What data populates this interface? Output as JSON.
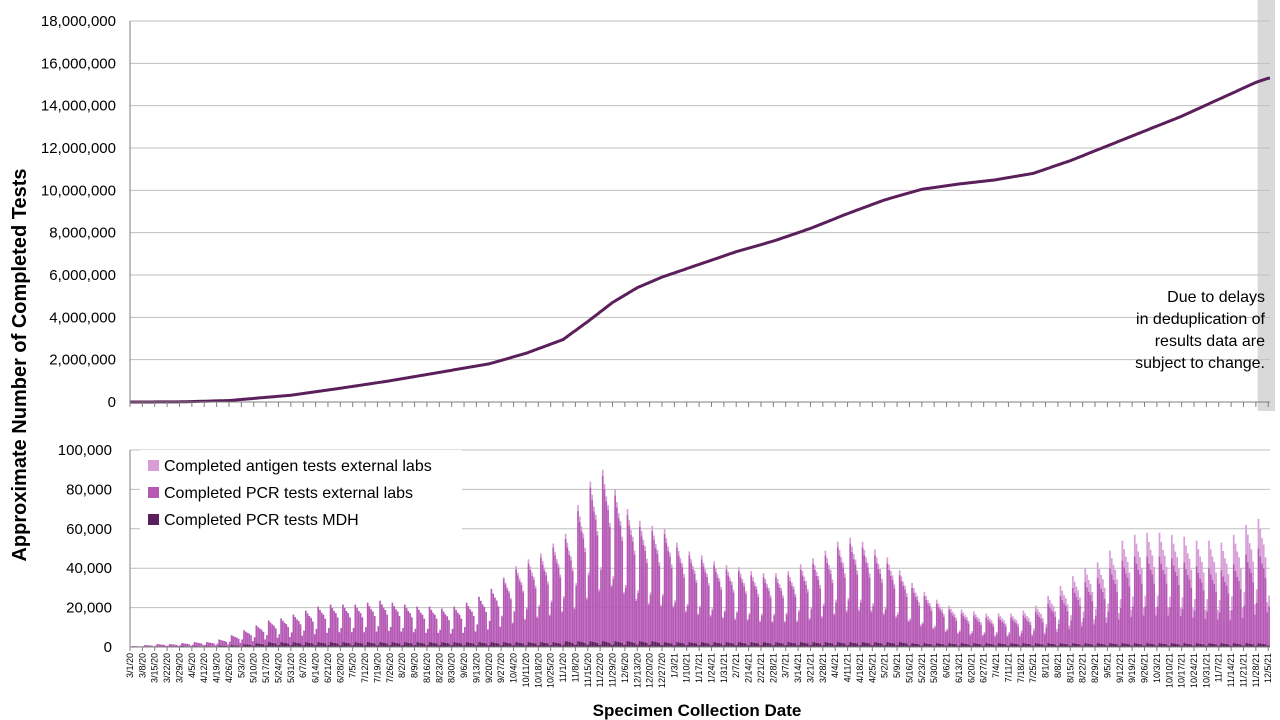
{
  "chart_data": [
    {
      "type": "line",
      "title": "",
      "ylabel": "Approximate Number of Completed Tests",
      "xlabel": "Specimen Collection Date",
      "ylim": [
        0,
        18000000
      ],
      "yticks": [
        "0",
        "2,000,000",
        "4,000,000",
        "6,000,000",
        "8,000,000",
        "10,000,000",
        "12,000,000",
        "14,000,000",
        "16,000,000",
        "18,000,000"
      ],
      "grid": true,
      "shaded_recent_period": true,
      "note": [
        "Due to delays",
        "in deduplication of",
        "results data are",
        "subject to change."
      ],
      "line_color": "#5b1f5b",
      "x": [
        "2020-03-01",
        "2020-03-29",
        "2020-04-26",
        "2020-05-31",
        "2020-06-28",
        "2020-07-26",
        "2020-08-23",
        "2020-09-20",
        "2020-10-11",
        "2020-11-01",
        "2020-11-15",
        "2020-11-29",
        "2020-12-13",
        "2020-12-27",
        "2021-01-17",
        "2021-02-07",
        "2021-02-28",
        "2021-03-21",
        "2021-04-11",
        "2021-05-02",
        "2021-05-23",
        "2021-06-13",
        "2021-07-04",
        "2021-07-25",
        "2021-08-15",
        "2021-09-05",
        "2021-09-26",
        "2021-10-17",
        "2021-11-07",
        "2021-11-28",
        "2021-12-05"
      ],
      "values": [
        0,
        5000,
        70000,
        320000,
        650000,
        1000000,
        1400000,
        1800000,
        2300000,
        2950000,
        3800000,
        4700000,
        5400000,
        5900000,
        6500000,
        7100000,
        7600000,
        8200000,
        8900000,
        9550000,
        10050000,
        10300000,
        10500000,
        10800000,
        11400000,
        12100000,
        12800000,
        13500000,
        14300000,
        15100000,
        15300000
      ]
    },
    {
      "type": "bar",
      "stacked": true,
      "ylim": [
        0,
        100000
      ],
      "yticks": [
        "0",
        "20,000",
        "40,000",
        "60,000",
        "80,000",
        "100,000"
      ],
      "grid": true,
      "legend_position": "top-left",
      "series": [
        {
          "name": "Completed antigen tests external labs",
          "color": "#d79ed7"
        },
        {
          "name": "Completed PCR tests external labs",
          "color": "#b559b5"
        },
        {
          "name": "Completed PCR tests MDH",
          "color": "#5b1f5b"
        }
      ],
      "weekly_peaks": {
        "weeks": [
          "3/1/20",
          "3/8/20",
          "3/15/20",
          "3/22/20",
          "3/29/20",
          "4/5/20",
          "4/12/20",
          "4/19/20",
          "4/26/20",
          "5/3/20",
          "5/10/20",
          "5/17/20",
          "5/24/20",
          "5/31/20",
          "6/7/20",
          "6/14/20",
          "6/21/20",
          "6/28/20",
          "7/5/20",
          "7/12/20",
          "7/19/20",
          "7/26/20",
          "8/2/20",
          "8/9/20",
          "8/16/20",
          "8/23/20",
          "8/30/20",
          "9/6/20",
          "9/13/20",
          "9/20/20",
          "9/27/20",
          "10/4/20",
          "10/11/20",
          "10/18/20",
          "10/25/20",
          "11/1/20",
          "11/8/20",
          "11/15/20",
          "11/22/20",
          "11/29/20",
          "12/6/20",
          "12/13/20",
          "12/20/20",
          "12/27/20",
          "1/3/21",
          "1/10/21",
          "1/17/21",
          "1/24/21",
          "1/31/21",
          "2/7/21",
          "2/14/21",
          "2/21/21",
          "2/28/21",
          "3/7/21",
          "3/14/21",
          "3/21/21",
          "3/28/21",
          "4/4/21",
          "4/11/21",
          "4/18/21",
          "4/25/21",
          "5/2/21",
          "5/9/21",
          "5/16/21",
          "5/23/21",
          "5/30/21",
          "6/6/21",
          "6/13/21",
          "6/20/21",
          "6/27/21",
          "7/4/21",
          "7/11/21",
          "7/18/21",
          "7/25/21",
          "8/1/21",
          "8/8/21",
          "8/15/21",
          "8/22/21",
          "8/29/21",
          "9/5/21",
          "9/12/21",
          "9/19/21",
          "9/26/21",
          "10/3/21",
          "10/10/21",
          "10/17/21",
          "10/24/21",
          "10/31/21",
          "11/7/21",
          "11/14/21",
          "11/21/21",
          "11/28/21",
          "12/5/21"
        ],
        "antigen": [
          0,
          0,
          0,
          0,
          0,
          0,
          0,
          0,
          0,
          0,
          0,
          0,
          0,
          0,
          0,
          0,
          0,
          0,
          0,
          0,
          0,
          0,
          0,
          0,
          0,
          0,
          0,
          0,
          0,
          0,
          1000,
          1500,
          2000,
          2000,
          2000,
          2500,
          3000,
          3000,
          3000,
          3000,
          3000,
          3000,
          2500,
          2500,
          2500,
          2000,
          2000,
          2000,
          2000,
          2000,
          2000,
          2000,
          2000,
          2000,
          2500,
          2500,
          2500,
          3000,
          3000,
          3000,
          3000,
          3000,
          2500,
          2500,
          2000,
          2000,
          2000,
          2000,
          2000,
          2000,
          2000,
          2000,
          2500,
          3000,
          4000,
          5000,
          6000,
          7000,
          8000,
          9000,
          10000,
          11000,
          12000,
          12000,
          12000,
          13000,
          13000,
          14000,
          14000,
          15000,
          15000,
          15000,
          12000
        ],
        "pcr_external": [
          500,
          1000,
          1500,
          1500,
          1500,
          2000,
          2000,
          3000,
          5000,
          7000,
          9000,
          11000,
          12000,
          14000,
          16000,
          18000,
          19000,
          19000,
          19000,
          20000,
          21000,
          20000,
          19000,
          18000,
          18000,
          17000,
          18000,
          20000,
          23000,
          27000,
          32000,
          37000,
          40000,
          43000,
          48000,
          52000,
          66000,
          78000,
          84000,
          74000,
          64000,
          58000,
          56000,
          55000,
          48000,
          44000,
          42000,
          39000,
          37000,
          36000,
          34000,
          33000,
          33000,
          34000,
          37000,
          40000,
          44000,
          48000,
          50000,
          48000,
          44000,
          40000,
          34000,
          28000,
          24000,
          20000,
          17000,
          15000,
          14000,
          13000,
          13000,
          13000,
          14000,
          16000,
          20000,
          24000,
          28000,
          31000,
          33000,
          38000,
          42000,
          44000,
          44000,
          44000,
          43000,
          41000,
          39000,
          38000,
          37000,
          40000,
          45000,
          48000,
          44000
        ],
        "pcr_mdh": [
          0,
          0,
          0,
          0,
          500,
          500,
          500,
          800,
          1000,
          1500,
          2000,
          2500,
          2500,
          2500,
          2500,
          2500,
          2500,
          2500,
          2500,
          2500,
          2500,
          2500,
          2500,
          2500,
          2500,
          2500,
          2500,
          2500,
          2500,
          2500,
          2500,
          2500,
          2500,
          2500,
          2500,
          3000,
          3000,
          3000,
          3000,
          3000,
          3000,
          3000,
          3000,
          2500,
          2500,
          2500,
          2500,
          2500,
          2500,
          2500,
          2500,
          2500,
          2500,
          2500,
          2500,
          2500,
          2500,
          2500,
          2500,
          2500,
          2500,
          2500,
          2500,
          2000,
          2000,
          2000,
          2000,
          2000,
          2000,
          2000,
          2000,
          2000,
          2000,
          2000,
          2000,
          2000,
          2000,
          2000,
          2000,
          2000,
          2000,
          2000,
          2000,
          2000,
          2000,
          2000,
          2000,
          2000,
          2000,
          2000,
          2000,
          2000,
          2000
        ]
      }
    }
  ]
}
